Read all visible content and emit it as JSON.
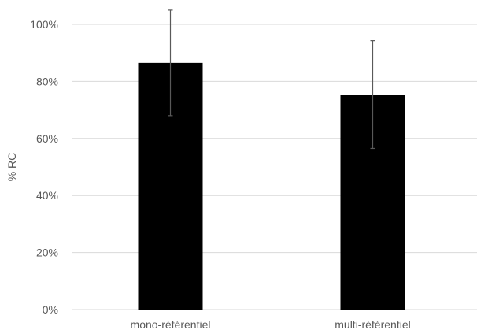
{
  "chart_data": {
    "type": "bar",
    "title": "",
    "xlabel": "",
    "ylabel": "% RC",
    "categories": [
      "mono-référentiel",
      "multi-référentiel"
    ],
    "values": [
      86.5,
      75.3
    ],
    "error_low": [
      68.0,
      56.5
    ],
    "error_high": [
      105.0,
      94.3
    ],
    "ylim": [
      0,
      100
    ],
    "yticks": [
      0,
      20,
      40,
      60,
      80,
      100
    ],
    "ytick_labels": [
      "0%",
      "20%",
      "40%",
      "60%",
      "80%",
      "100%"
    ],
    "grid": true,
    "legend": "none",
    "bar_color": "#000000",
    "error_color": "#595959",
    "grid_color": "#d9d9d9",
    "text_color": "#595959"
  }
}
